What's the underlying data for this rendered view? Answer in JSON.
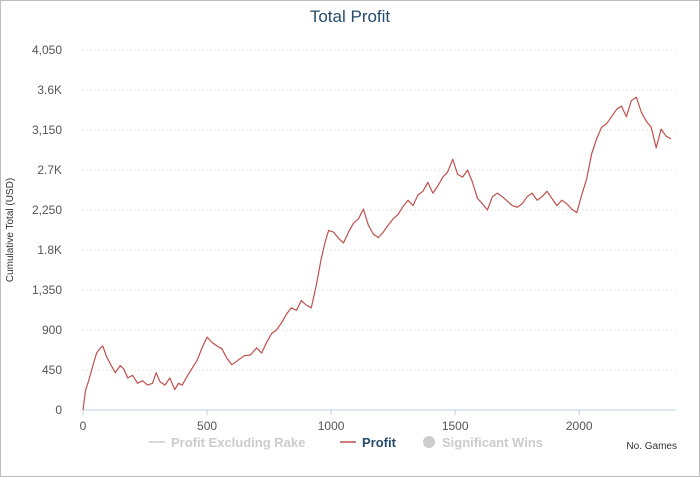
{
  "chart_data": {
    "type": "line",
    "title": "Total Profit",
    "ylabel": "Cumulative Total (USD)",
    "xlabel": "No. Games",
    "xlim": [
      0,
      2390
    ],
    "ylim": [
      0,
      4050
    ],
    "y_ticks": [
      "0",
      "450",
      "900",
      "1,350",
      "1.8K",
      "2,250",
      "2.7K",
      "3,150",
      "3.6K",
      "4,050"
    ],
    "y_tick_values": [
      0,
      450,
      900,
      1350,
      1800,
      2250,
      2700,
      3150,
      3600,
      4050
    ],
    "x_ticks": [
      "0",
      "500",
      "1000",
      "1500",
      "2000"
    ],
    "x_tick_values": [
      0,
      500,
      1000,
      1500,
      2000
    ],
    "grid": "horizontal dotted",
    "legend_position": "bottom",
    "legend": [
      {
        "name": "Profit Excluding Rake",
        "state": "hidden",
        "color": "#cccccc"
      },
      {
        "name": "Profit",
        "state": "visible",
        "color": "#274b6d"
      },
      {
        "name": "Significant Wins",
        "state": "hidden",
        "color": "#cccccc"
      }
    ],
    "series": [
      {
        "name": "Profit",
        "color": "#c0504d",
        "x": [
          0,
          10,
          25,
          40,
          55,
          70,
          80,
          95,
          110,
          130,
          150,
          165,
          180,
          200,
          220,
          240,
          260,
          280,
          295,
          310,
          330,
          350,
          370,
          385,
          400,
          420,
          440,
          460,
          480,
          500,
          520,
          540,
          560,
          580,
          600,
          625,
          650,
          675,
          700,
          720,
          740,
          760,
          780,
          800,
          820,
          840,
          860,
          880,
          900,
          920,
          940,
          960,
          975,
          990,
          1010,
          1030,
          1050,
          1070,
          1090,
          1110,
          1130,
          1150,
          1170,
          1190,
          1210,
          1230,
          1250,
          1270,
          1290,
          1310,
          1330,
          1350,
          1370,
          1390,
          1410,
          1430,
          1450,
          1470,
          1490,
          1510,
          1530,
          1550,
          1570,
          1590,
          1610,
          1630,
          1650,
          1670,
          1690,
          1710,
          1730,
          1750,
          1770,
          1790,
          1810,
          1830,
          1850,
          1870,
          1890,
          1910,
          1930,
          1950,
          1970,
          1990,
          2010,
          2030,
          2050,
          2070,
          2090,
          2110,
          2130,
          2150,
          2170,
          2190,
          2210,
          2230,
          2250,
          2270,
          2290,
          2310,
          2330,
          2350,
          2370
        ],
        "y": [
          0,
          220,
          350,
          500,
          640,
          700,
          720,
          600,
          520,
          420,
          500,
          460,
          360,
          390,
          300,
          330,
          280,
          300,
          420,
          320,
          280,
          360,
          230,
          300,
          280,
          380,
          470,
          560,
          700,
          820,
          760,
          720,
          690,
          580,
          510,
          560,
          610,
          620,
          700,
          640,
          760,
          860,
          900,
          980,
          1080,
          1150,
          1120,
          1230,
          1180,
          1150,
          1400,
          1700,
          1880,
          2020,
          2000,
          1930,
          1880,
          2000,
          2100,
          2150,
          2260,
          2080,
          1980,
          1940,
          2000,
          2080,
          2150,
          2200,
          2290,
          2360,
          2300,
          2420,
          2460,
          2560,
          2440,
          2520,
          2620,
          2680,
          2820,
          2650,
          2620,
          2700,
          2560,
          2380,
          2320,
          2250,
          2400,
          2440,
          2400,
          2350,
          2300,
          2280,
          2320,
          2400,
          2440,
          2360,
          2400,
          2460,
          2380,
          2300,
          2360,
          2320,
          2260,
          2220,
          2420,
          2600,
          2880,
          3050,
          3180,
          3220,
          3300,
          3380,
          3420,
          3300,
          3480,
          3520,
          3350,
          3250,
          3180,
          2950,
          3160,
          3080,
          3050
        ]
      }
    ]
  }
}
